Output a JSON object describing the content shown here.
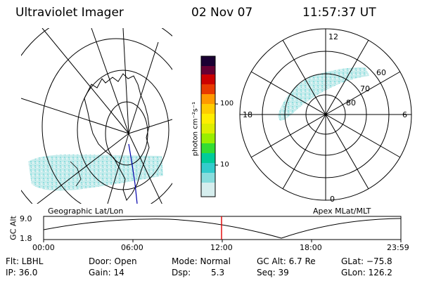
{
  "header": {
    "instrument": "Ultraviolet Imager",
    "date": "02 Nov 07",
    "time": "11:57:37 UT"
  },
  "panels": {
    "geo_label": "Geographic Lat/Lon",
    "apex_label": "Apex MLat/MLT"
  },
  "polar_plot": {
    "mlt_labels": {
      "top": "12",
      "left": "18",
      "right": "6",
      "bottom": "0"
    },
    "mlat_labels": [
      "60",
      "70",
      "80"
    ]
  },
  "colorbar": {
    "unit_label": "photon cm⁻²s⁻¹",
    "ticks": [
      "100",
      "10"
    ]
  },
  "altitude_plot": {
    "ylabel": "GC Alt",
    "yticks": [
      "9.0",
      "1.8"
    ],
    "xticks": [
      "00:00",
      "06:00",
      "12:00",
      "18:00",
      "23:59"
    ]
  },
  "info": {
    "flt": "Flt: LBHL",
    "ip": "IP: 36.0",
    "door": "Door: Open",
    "gain": "Gain: 14",
    "mode": "Mode: Normal",
    "dsp_label": "Dsp:",
    "dsp_value": "5.3",
    "gc_alt": "GC Alt: 6.7 Re",
    "seq": "Seq: 39",
    "glat": "GLat: −75.8",
    "glon": "GLon: 126.2"
  },
  "colors": {
    "aurora": "#8fe3e3",
    "aurora_light": "#c9eded",
    "current_time_marker": "#e00000",
    "track_line": "#0000aa"
  }
}
